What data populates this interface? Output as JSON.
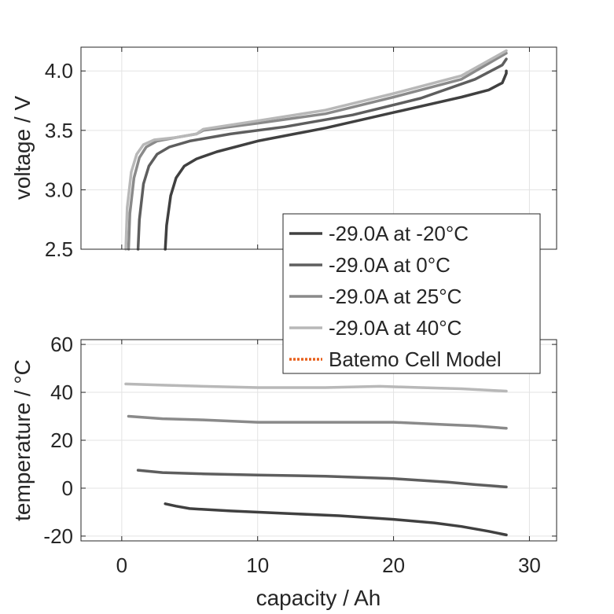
{
  "chart_data": [
    {
      "type": "line",
      "xlabel": "",
      "ylabel": "voltage / V",
      "xlim": [
        -3,
        32
      ],
      "ylim": [
        2.5,
        4.2
      ],
      "xticks": [
        0,
        10,
        20,
        30
      ],
      "yticks": [
        2.5,
        3.0,
        3.5,
        4.0
      ],
      "ytick_labels": [
        "2.5",
        "3.0",
        "3.5",
        "4.0"
      ],
      "grid": true,
      "series": [
        {
          "name": "-29.0A at -20°C",
          "color": "#404040",
          "x": [
            3.2,
            3.3,
            3.6,
            4.0,
            4.6,
            5.5,
            7,
            10,
            15,
            20,
            25,
            27,
            28.0,
            28.3,
            28.3
          ],
          "y": [
            2.5,
            2.7,
            2.95,
            3.1,
            3.2,
            3.26,
            3.32,
            3.41,
            3.52,
            3.65,
            3.78,
            3.84,
            3.9,
            3.98,
            4.0
          ]
        },
        {
          "name": "-29.0A at 0°C",
          "color": "#5e5e5e",
          "x": [
            1.2,
            1.3,
            1.6,
            2.0,
            2.6,
            3.5,
            5,
            8,
            12,
            17,
            22,
            26,
            28.0,
            28.3
          ],
          "y": [
            2.5,
            2.75,
            3.05,
            3.2,
            3.3,
            3.36,
            3.41,
            3.47,
            3.53,
            3.63,
            3.77,
            3.93,
            4.05,
            4.1
          ]
        },
        {
          "name": "-29.0A at 25°C",
          "color": "#8a8a8a",
          "x": [
            0.5,
            0.6,
            0.9,
            1.3,
            1.8,
            2.6,
            4,
            5.5,
            6,
            10,
            15,
            20,
            25,
            28.3
          ],
          "y": [
            2.5,
            2.8,
            3.1,
            3.27,
            3.36,
            3.41,
            3.44,
            3.47,
            3.5,
            3.56,
            3.64,
            3.78,
            3.93,
            4.15
          ]
        },
        {
          "name": "-29.0A at 40°C",
          "color": "#b8b8b8",
          "x": [
            0.3,
            0.4,
            0.7,
            1.1,
            1.6,
            2.4,
            4,
            5.5,
            6,
            10,
            15,
            20,
            25,
            28.3
          ],
          "y": [
            2.5,
            2.85,
            3.15,
            3.3,
            3.38,
            3.42,
            3.44,
            3.47,
            3.51,
            3.58,
            3.67,
            3.81,
            3.96,
            4.17
          ]
        }
      ],
      "legend": {
        "placement": "lower-right, overlapping lower panel",
        "entries": [
          {
            "label": "-29.0A at -20°C",
            "color": "#404040",
            "style": "solid"
          },
          {
            "label": "-29.0A at 0°C",
            "color": "#5e5e5e",
            "style": "solid"
          },
          {
            "label": "-29.0A at 25°C",
            "color": "#8a8a8a",
            "style": "solid"
          },
          {
            "label": "-29.0A at 40°C",
            "color": "#b8b8b8",
            "style": "solid"
          },
          {
            "label": "Batemo Cell Model",
            "color": "#e8601c",
            "style": "dotted"
          }
        ]
      }
    },
    {
      "type": "line",
      "xlabel": "capacity / Ah",
      "ylabel": "temperature / °C",
      "xlim": [
        -3,
        32
      ],
      "ylim": [
        -22,
        62
      ],
      "xticks": [
        0,
        10,
        20,
        30
      ],
      "xtick_labels": [
        "0",
        "10",
        "20",
        "30"
      ],
      "yticks": [
        -20,
        0,
        20,
        40,
        60
      ],
      "ytick_labels": [
        "-20",
        "0",
        "20",
        "40",
        "60"
      ],
      "grid": true,
      "series": [
        {
          "name": "-29.0A at -20°C",
          "color": "#404040",
          "x": [
            3.2,
            4,
            5,
            8,
            12,
            16,
            20,
            23,
            25,
            27,
            28.3
          ],
          "y": [
            -6.5,
            -7.5,
            -8.5,
            -9.5,
            -10.5,
            -11.5,
            -13,
            -14.5,
            -16,
            -18,
            -19.5
          ]
        },
        {
          "name": "-29.0A at 0°C",
          "color": "#5e5e5e",
          "x": [
            1.2,
            3,
            6,
            10,
            15,
            20,
            24,
            26,
            28.3
          ],
          "y": [
            7.5,
            6.5,
            6,
            5.5,
            5,
            4,
            2.5,
            1.5,
            0.5
          ]
        },
        {
          "name": "-29.0A at 25°C",
          "color": "#8a8a8a",
          "x": [
            0.5,
            3,
            6,
            10,
            15,
            20,
            24,
            26,
            28.3
          ],
          "y": [
            30,
            29,
            28.5,
            27.5,
            27.5,
            27.5,
            26.5,
            26,
            25
          ]
        },
        {
          "name": "-29.0A at 40°C",
          "color": "#b8b8b8",
          "x": [
            0.3,
            3,
            6,
            10,
            15,
            19,
            22,
            25,
            28.3
          ],
          "y": [
            43.5,
            43,
            42.5,
            42,
            42,
            42.5,
            42,
            41.5,
            40.5
          ]
        }
      ]
    }
  ]
}
